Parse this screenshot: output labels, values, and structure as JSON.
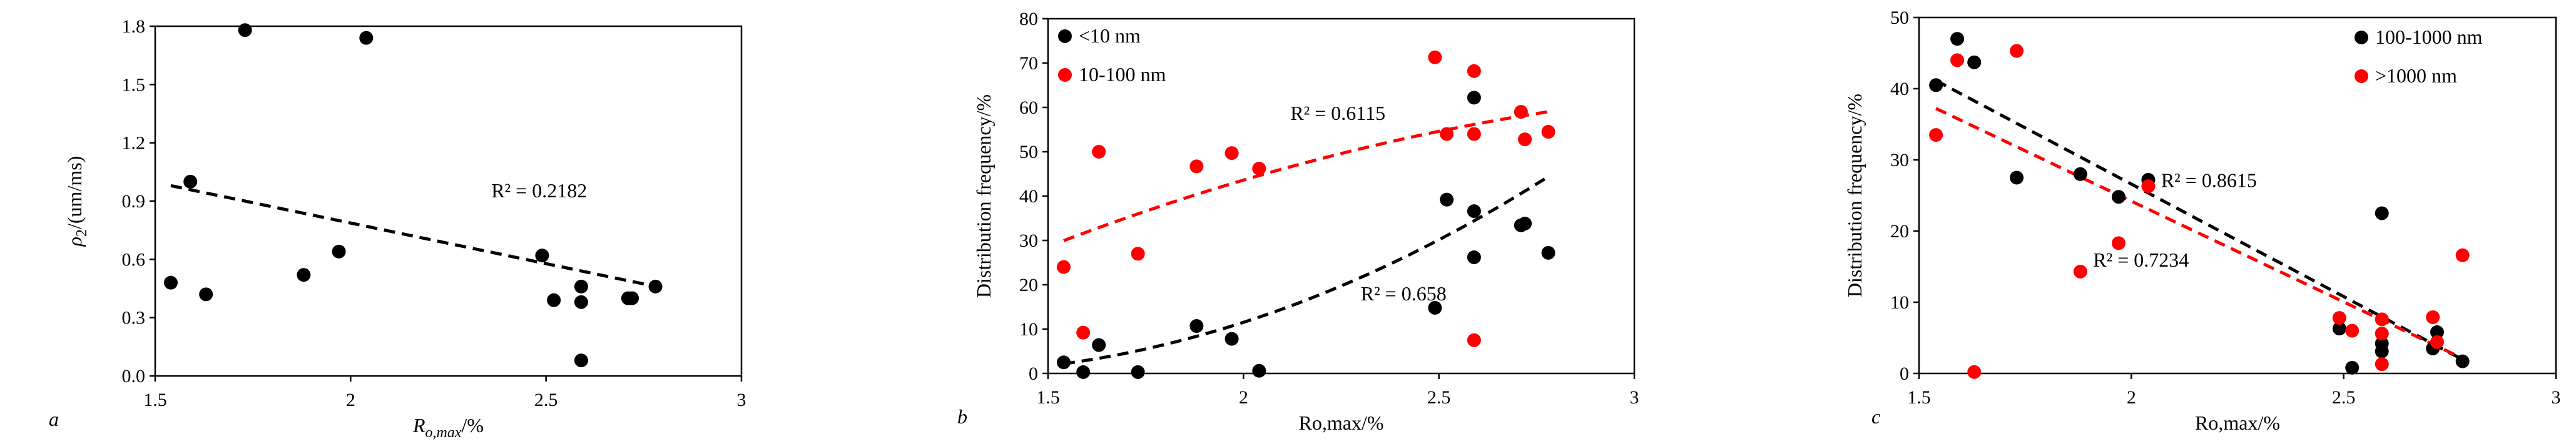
{
  "chart_data": [
    {
      "type": "scatter",
      "panel_letter": "a",
      "xlabel_main": "R",
      "xlabel_sub": "o,max",
      "xlabel_tail": "/%",
      "ylabel_main": "ρ",
      "ylabel_sub": "2",
      "ylabel_tail": "/(um/ms)",
      "xlim": [
        1.5,
        3
      ],
      "ylim": [
        0,
        1.8
      ],
      "x_ticks": [
        1.5,
        2,
        2.5,
        3
      ],
      "x_tick_labels": [
        "1.5",
        "2",
        "2.5",
        "3"
      ],
      "y_ticks": [
        0,
        0.3,
        0.6,
        0.9,
        1.2,
        1.5,
        1.8
      ],
      "y_tick_labels": [
        "0.0",
        "0.3",
        "0.6",
        "0.9",
        "1.2",
        "1.5",
        "1.8"
      ],
      "series": [
        {
          "name": "ρ2",
          "color": "#000000",
          "points": [
            [
              1.54,
              0.48
            ],
            [
              1.59,
              1.0
            ],
            [
              1.63,
              0.42
            ],
            [
              1.73,
              1.78
            ],
            [
              1.88,
              0.52
            ],
            [
              1.97,
              0.64
            ],
            [
              2.04,
              1.74
            ],
            [
              2.49,
              0.62
            ],
            [
              2.52,
              0.39
            ],
            [
              2.59,
              0.46
            ],
            [
              2.59,
              0.38
            ],
            [
              2.59,
              0.08
            ],
            [
              2.71,
              0.4
            ],
            [
              2.72,
              0.4
            ],
            [
              2.78,
              0.46
            ]
          ]
        }
      ],
      "trendlines": [
        {
          "color": "#000000",
          "kind": "linear",
          "coef": [
            -0.418,
            1.623
          ],
          "x_range": [
            1.54,
            2.78
          ]
        }
      ],
      "annotations": [
        {
          "text": "R² = 0.2182",
          "x": 2.36,
          "y": 0.92
        }
      ]
    },
    {
      "type": "scatter",
      "panel_letter": "b",
      "xlabel": "Ro,max/%",
      "ylabel": "Distribution frequency/%",
      "xlim": [
        1.5,
        3
      ],
      "ylim": [
        0,
        80
      ],
      "x_ticks": [
        1.5,
        2,
        2.5,
        3
      ],
      "x_tick_labels": [
        "1.5",
        "2",
        "2.5",
        "3"
      ],
      "y_ticks": [
        0,
        10,
        20,
        30,
        40,
        50,
        60,
        70,
        80
      ],
      "y_tick_labels": [
        "0",
        "10",
        "20",
        "30",
        "40",
        "50",
        "60",
        "70",
        "80"
      ],
      "legend": [
        {
          "label": "<10 nm",
          "color": "#000000"
        },
        {
          "label": "10-100 nm",
          "color": "#ff0000"
        }
      ],
      "series": [
        {
          "name": "<10 nm",
          "color": "#000000",
          "points": [
            [
              1.54,
              2.5
            ],
            [
              1.59,
              0.3
            ],
            [
              1.63,
              6.4
            ],
            [
              1.73,
              0.3
            ],
            [
              1.88,
              10.7
            ],
            [
              1.97,
              7.8
            ],
            [
              2.04,
              0.6
            ],
            [
              2.49,
              14.8
            ],
            [
              2.52,
              39.2
            ],
            [
              2.59,
              62.2
            ],
            [
              2.59,
              36.6
            ],
            [
              2.59,
              26.2
            ],
            [
              2.71,
              33.4
            ],
            [
              2.72,
              33.8
            ],
            [
              2.78,
              27.2
            ]
          ]
        },
        {
          "name": "10-100 nm",
          "color": "#ff0000",
          "points": [
            [
              1.54,
              24.0
            ],
            [
              1.59,
              9.2
            ],
            [
              1.63,
              50.0
            ],
            [
              1.73,
              27.0
            ],
            [
              1.88,
              46.7
            ],
            [
              1.97,
              49.7
            ],
            [
              2.04,
              46.2
            ],
            [
              2.49,
              71.3
            ],
            [
              2.52,
              54.0
            ],
            [
              2.59,
              68.2
            ],
            [
              2.59,
              54.0
            ],
            [
              2.59,
              7.5
            ],
            [
              2.71,
              59.0
            ],
            [
              2.72,
              52.8
            ],
            [
              2.78,
              54.5
            ]
          ]
        }
      ],
      "trendlines": [
        {
          "color": "#000000",
          "kind": "quadratic",
          "coef": [
            17.58,
            -41.89,
            24.99
          ],
          "x_range": [
            1.54,
            2.78
          ]
        },
        {
          "color": "#ff0000",
          "kind": "quadratic",
          "coef": [
            -8.0,
            58.0,
            -40.4
          ],
          "x_range": [
            1.54,
            2.78
          ]
        }
      ],
      "annotations": [
        {
          "text": "R² = 0.6115",
          "x": 2.12,
          "y": 57.2
        },
        {
          "text": "R² = 0.658",
          "x": 2.3,
          "y": 16.5
        }
      ]
    },
    {
      "type": "scatter",
      "panel_letter": "c",
      "xlabel": "Ro,max/%",
      "ylabel": "Distribution frequency/%",
      "xlim": [
        1.5,
        3
      ],
      "ylim": [
        0,
        50
      ],
      "x_ticks": [
        1.5,
        2,
        2.5,
        3
      ],
      "x_tick_labels": [
        "1.5",
        "2",
        "2.5",
        "3"
      ],
      "y_ticks": [
        0,
        10,
        20,
        30,
        40,
        50
      ],
      "y_tick_labels": [
        "0",
        "10",
        "20",
        "30",
        "40",
        "50"
      ],
      "legend": [
        {
          "label": "100-1000 nm",
          "color": "#000000"
        },
        {
          "label": ">1000 nm",
          "color": "#ff0000"
        }
      ],
      "series": [
        {
          "name": "100-1000 nm",
          "color": "#000000",
          "points": [
            [
              1.54,
              40.5
            ],
            [
              1.59,
              47.0
            ],
            [
              1.63,
              43.7
            ],
            [
              1.73,
              27.5
            ],
            [
              1.88,
              28.0
            ],
            [
              1.97,
              24.8
            ],
            [
              2.04,
              27.2
            ],
            [
              2.49,
              6.3
            ],
            [
              2.52,
              0.8
            ],
            [
              2.59,
              22.5
            ],
            [
              2.59,
              4.2
            ],
            [
              2.59,
              3.1
            ],
            [
              2.71,
              3.5
            ],
            [
              2.72,
              5.8
            ],
            [
              2.78,
              1.7
            ]
          ]
        },
        {
          "name": ">1000 nm",
          "color": "#ff0000",
          "points": [
            [
              1.54,
              33.5
            ],
            [
              1.59,
              44.0
            ],
            [
              1.63,
              0.2
            ],
            [
              1.73,
              45.3
            ],
            [
              1.88,
              14.3
            ],
            [
              1.97,
              18.3
            ],
            [
              2.04,
              26.3
            ],
            [
              2.49,
              7.8
            ],
            [
              2.52,
              6.0
            ],
            [
              2.59,
              7.6
            ],
            [
              2.59,
              5.6
            ],
            [
              2.59,
              1.3
            ],
            [
              2.71,
              7.9
            ],
            [
              2.72,
              4.4
            ],
            [
              2.78,
              16.6
            ]
          ]
        }
      ],
      "trendlines": [
        {
          "color": "#000000",
          "kind": "linear",
          "coef": [
            -31.6,
            89.8
          ],
          "x_range": [
            1.54,
            2.78
          ]
        },
        {
          "color": "#ff0000",
          "kind": "linear",
          "coef": [
            -28.3,
            80.8
          ],
          "x_range": [
            1.54,
            2.78
          ]
        }
      ],
      "annotations": [
        {
          "text": "R² = 0.8615",
          "x": 2.07,
          "y": 26.2
        },
        {
          "text": "R² = 0.7234",
          "x": 1.91,
          "y": 15.0
        }
      ]
    }
  ]
}
